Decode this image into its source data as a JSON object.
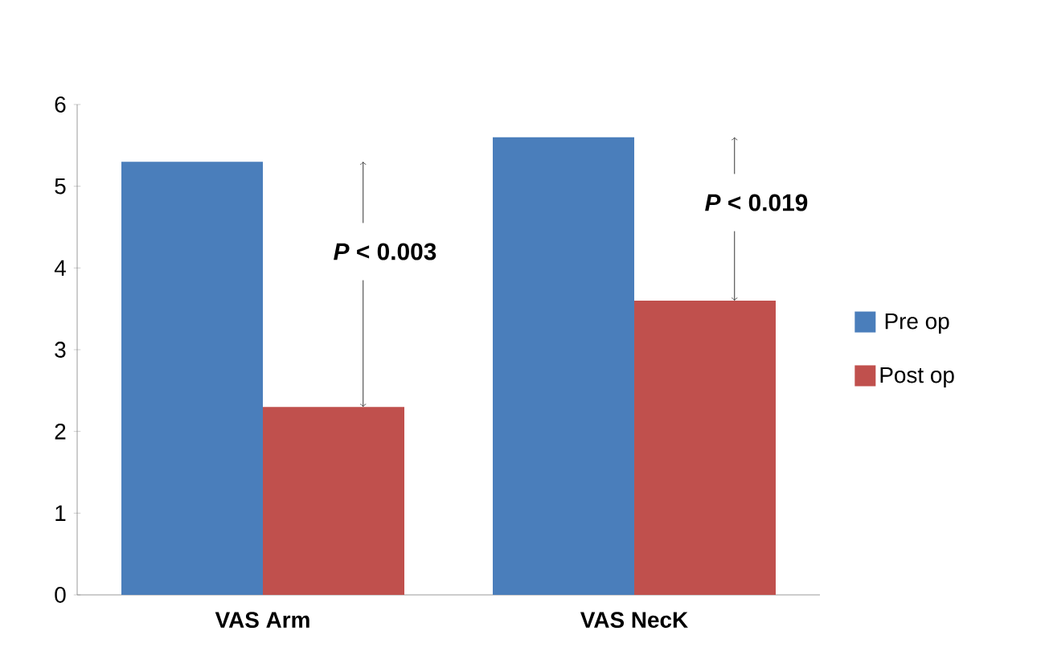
{
  "chart_data": {
    "type": "bar",
    "categories": [
      "VAS Arm",
      "VAS NecK"
    ],
    "series": [
      {
        "name": "Pre op",
        "color": "#4a7ebb",
        "values": [
          5.3,
          5.6
        ]
      },
      {
        "name": "Post op",
        "color": "#c0504d",
        "values": [
          2.3,
          3.6
        ]
      }
    ],
    "ylim": [
      0,
      6
    ],
    "yticks": [
      0,
      1,
      2,
      3,
      4,
      5,
      6
    ],
    "legend": "right",
    "grid": false,
    "annotations": [
      {
        "text": "*P* < 0.003",
        "x": "VAS Arm",
        "y": 4.2
      },
      {
        "text": "*P* < 0.019",
        "x": "VAS NecK",
        "y": 4.8
      }
    ]
  }
}
